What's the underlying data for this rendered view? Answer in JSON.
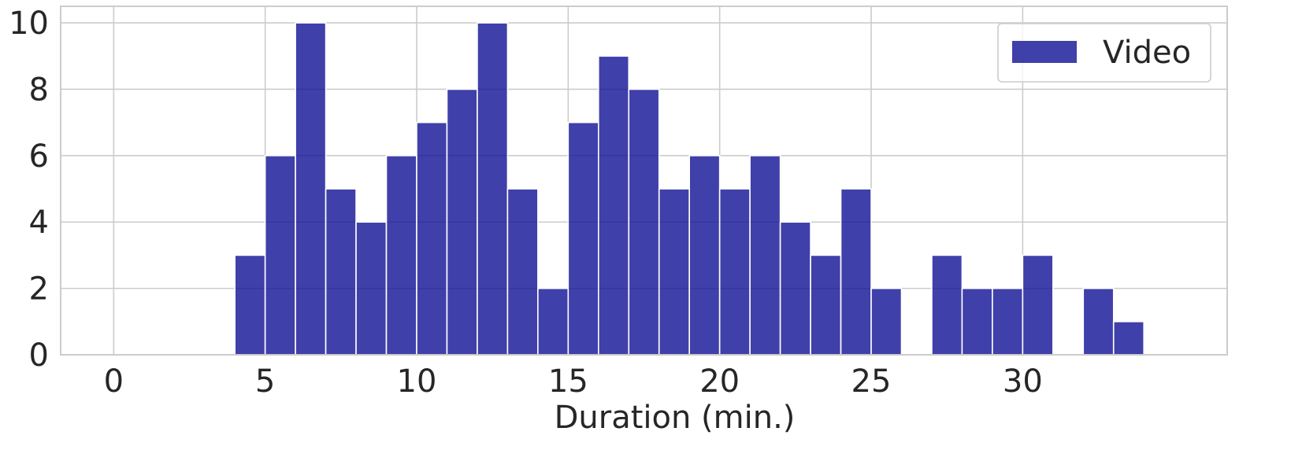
{
  "chart_data": {
    "type": "bar",
    "subtype": "histogram",
    "title": "",
    "xlabel": "Duration (min.)",
    "ylabel": "",
    "xlim": [
      -1.75,
      36.75
    ],
    "ylim": [
      0,
      10.5
    ],
    "xticks": [
      0,
      5,
      10,
      15,
      20,
      25,
      30
    ],
    "yticks": [
      0,
      2,
      4,
      6,
      8,
      10
    ],
    "grid": true,
    "legend": {
      "placement": "top-right",
      "entries": [
        "Video"
      ]
    },
    "bin_width": 1,
    "series": [
      {
        "name": "Video",
        "color": "#0f1094",
        "bins": [
          {
            "start": 4,
            "end": 5,
            "count": 3
          },
          {
            "start": 5,
            "end": 6,
            "count": 6
          },
          {
            "start": 6,
            "end": 7,
            "count": 10
          },
          {
            "start": 7,
            "end": 8,
            "count": 5
          },
          {
            "start": 8,
            "end": 9,
            "count": 4
          },
          {
            "start": 9,
            "end": 10,
            "count": 6
          },
          {
            "start": 10,
            "end": 11,
            "count": 7
          },
          {
            "start": 11,
            "end": 12,
            "count": 8
          },
          {
            "start": 12,
            "end": 13,
            "count": 10
          },
          {
            "start": 13,
            "end": 14,
            "count": 5
          },
          {
            "start": 14,
            "end": 15,
            "count": 2
          },
          {
            "start": 15,
            "end": 16,
            "count": 7
          },
          {
            "start": 16,
            "end": 17,
            "count": 9
          },
          {
            "start": 17,
            "end": 18,
            "count": 8
          },
          {
            "start": 18,
            "end": 19,
            "count": 5
          },
          {
            "start": 19,
            "end": 20,
            "count": 6
          },
          {
            "start": 20,
            "end": 21,
            "count": 5
          },
          {
            "start": 21,
            "end": 22,
            "count": 6
          },
          {
            "start": 22,
            "end": 23,
            "count": 4
          },
          {
            "start": 23,
            "end": 24,
            "count": 3
          },
          {
            "start": 24,
            "end": 25,
            "count": 5
          },
          {
            "start": 25,
            "end": 26,
            "count": 2
          },
          {
            "start": 26,
            "end": 27,
            "count": 0
          },
          {
            "start": 27,
            "end": 28,
            "count": 3
          },
          {
            "start": 28,
            "end": 29,
            "count": 2
          },
          {
            "start": 29,
            "end": 30,
            "count": 2
          },
          {
            "start": 30,
            "end": 31,
            "count": 3
          },
          {
            "start": 31,
            "end": 32,
            "count": 0
          },
          {
            "start": 32,
            "end": 33,
            "count": 2
          },
          {
            "start": 33,
            "end": 34,
            "count": 1
          }
        ]
      }
    ]
  }
}
